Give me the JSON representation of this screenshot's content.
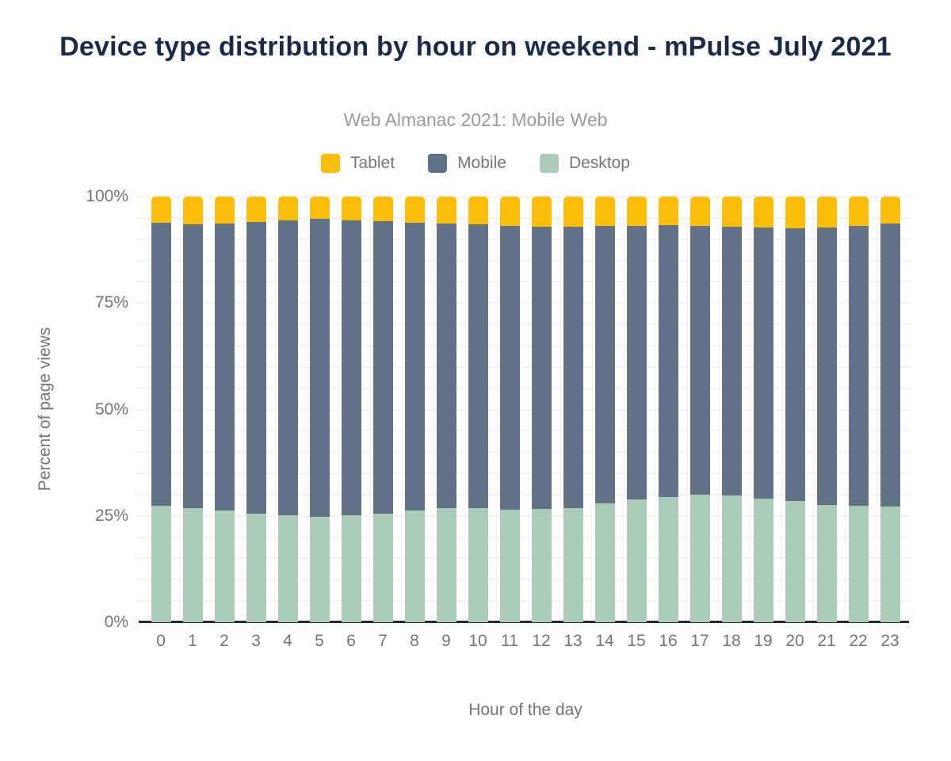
{
  "colors": {
    "title": "#1A2B4A",
    "subtitle": "#9A9A9A",
    "axis_text": "#757575",
    "baseline": "#20293A",
    "gridline": "#F3F3F3",
    "tablet": "#FBBD08",
    "mobile": "#5F7287",
    "desktop": "#A9CBB8"
  },
  "chart_data": {
    "type": "bar",
    "stacked": true,
    "title": "Device type distribution by hour on weekend - mPulse July 2021",
    "subtitle": "Web Almanac 2021: Mobile Web",
    "xlabel": "Hour of the day",
    "ylabel": "Percent of page views",
    "ylim": [
      0,
      100
    ],
    "ytick_labels": [
      "0%",
      "25%",
      "50%",
      "75%",
      "100%"
    ],
    "minor_grid_step_pct": 5,
    "grid": "horizontal",
    "legend_position": "top",
    "legend_order": [
      "Tablet",
      "Mobile",
      "Desktop"
    ],
    "categories": [
      "0",
      "1",
      "2",
      "3",
      "4",
      "5",
      "6",
      "7",
      "8",
      "9",
      "10",
      "11",
      "12",
      "13",
      "14",
      "15",
      "16",
      "17",
      "18",
      "19",
      "20",
      "21",
      "22",
      "23"
    ],
    "series": [
      {
        "name": "Desktop",
        "color": "#A9CBB8",
        "values": [
          27.4,
          26.8,
          26.2,
          25.6,
          25.1,
          24.8,
          25.1,
          25.5,
          26.3,
          26.8,
          26.8,
          26.5,
          26.7,
          26.9,
          27.9,
          28.9,
          29.4,
          29.9,
          29.8,
          29.1,
          28.5,
          27.6,
          27.3,
          27.2
        ]
      },
      {
        "name": "Mobile",
        "color": "#5F7287",
        "values": [
          66.4,
          66.6,
          67.4,
          68.5,
          69.4,
          70.0,
          69.4,
          68.7,
          67.6,
          66.8,
          66.6,
          66.7,
          66.3,
          66.1,
          65.3,
          64.2,
          63.9,
          63.2,
          63.1,
          63.6,
          64.1,
          65.2,
          65.8,
          66.4
        ]
      },
      {
        "name": "Tablet",
        "color": "#FBBD08",
        "values": [
          6.2,
          6.6,
          6.4,
          5.9,
          5.5,
          5.2,
          5.5,
          5.8,
          6.1,
          6.4,
          6.6,
          6.8,
          7.0,
          7.0,
          6.8,
          6.9,
          6.7,
          6.9,
          7.1,
          7.3,
          7.4,
          7.2,
          6.9,
          6.4
        ]
      }
    ]
  }
}
